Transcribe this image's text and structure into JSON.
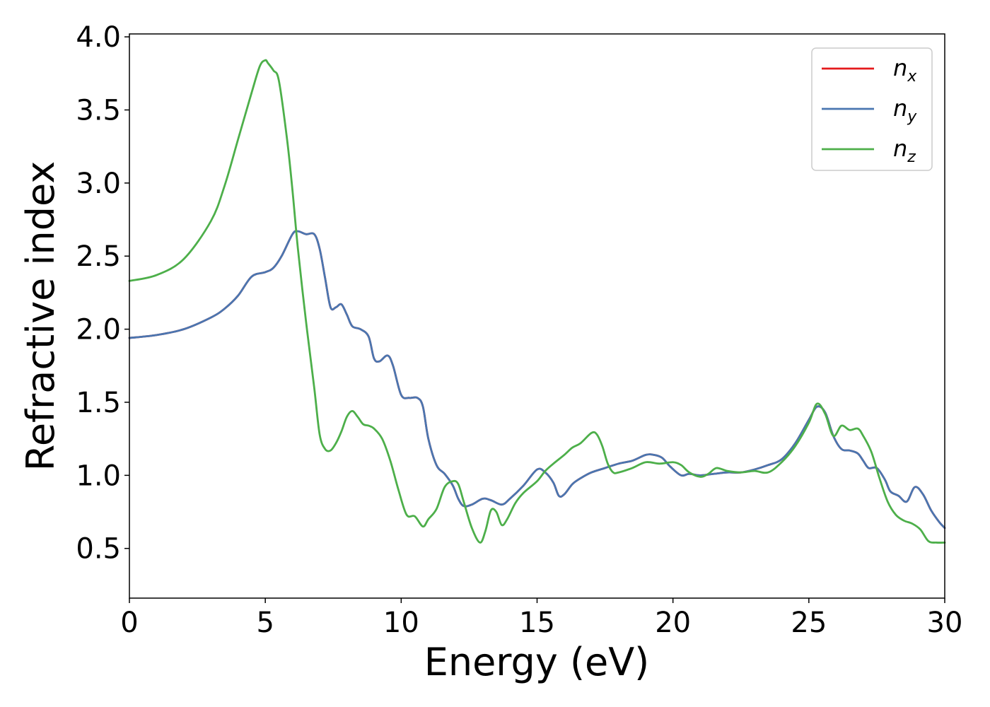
{
  "chart_data": {
    "type": "line",
    "title": "",
    "xlabel": "Energy (eV)",
    "ylabel": "Refractive index",
    "xlim": [
      0,
      30
    ],
    "ylim": [
      0.16,
      4.02
    ],
    "xticks": [
      0,
      5,
      10,
      15,
      20,
      25,
      30
    ],
    "xtick_labels": [
      "0",
      "5",
      "10",
      "15",
      "20",
      "25",
      "30"
    ],
    "yticks": [
      0.5,
      1.0,
      1.5,
      2.0,
      2.5,
      3.0,
      3.5,
      4.0
    ],
    "ytick_labels": [
      "0.5",
      "1.0",
      "1.5",
      "2.0",
      "2.5",
      "3.0",
      "3.5",
      "4.0"
    ],
    "grid": false,
    "legend_position": "top-right",
    "series": [
      {
        "name": "n_x",
        "legend_base": "n",
        "legend_sub": "x",
        "color": "#e41a1c",
        "x": [
          0,
          1,
          2,
          3,
          3.5,
          4,
          4.5,
          5,
          5.3,
          5.6,
          6.0,
          6.2,
          6.5,
          6.8,
          7.0,
          7.2,
          7.4,
          7.6,
          7.8,
          8.0,
          8.2,
          8.5,
          8.8,
          9.0,
          9.2,
          9.5,
          9.7,
          10.0,
          10.3,
          10.6,
          10.8,
          11.0,
          11.3,
          11.6,
          11.9,
          12.1,
          12.3,
          12.6,
          13.0,
          13.3,
          13.7,
          14.0,
          14.5,
          15.0,
          15.3,
          15.6,
          15.8,
          16.0,
          16.3,
          16.6,
          17.0,
          17.5,
          18.0,
          18.5,
          19.0,
          19.3,
          19.6,
          19.9,
          20.3,
          20.6,
          21.0,
          21.5,
          22.0,
          22.5,
          23.0,
          23.5,
          24.0,
          24.5,
          25.0,
          25.3,
          25.6,
          25.9,
          26.2,
          26.5,
          26.8,
          27.0,
          27.2,
          27.5,
          27.8,
          28.0,
          28.3,
          28.6,
          28.9,
          29.2,
          29.5,
          29.8,
          30.0
        ],
        "y": [
          1.94,
          1.96,
          2.0,
          2.08,
          2.14,
          2.23,
          2.36,
          2.39,
          2.42,
          2.5,
          2.65,
          2.67,
          2.65,
          2.65,
          2.55,
          2.35,
          2.15,
          2.15,
          2.17,
          2.1,
          2.02,
          2.0,
          1.95,
          1.8,
          1.78,
          1.82,
          1.75,
          1.55,
          1.53,
          1.53,
          1.47,
          1.25,
          1.07,
          1.01,
          0.93,
          0.84,
          0.79,
          0.8,
          0.84,
          0.83,
          0.8,
          0.84,
          0.93,
          1.04,
          1.02,
          0.95,
          0.86,
          0.87,
          0.94,
          0.98,
          1.02,
          1.05,
          1.08,
          1.1,
          1.14,
          1.14,
          1.12,
          1.06,
          1.0,
          1.01,
          1.0,
          1.01,
          1.02,
          1.02,
          1.04,
          1.07,
          1.11,
          1.22,
          1.38,
          1.47,
          1.43,
          1.27,
          1.18,
          1.17,
          1.15,
          1.1,
          1.05,
          1.05,
          0.97,
          0.89,
          0.86,
          0.82,
          0.92,
          0.87,
          0.76,
          0.68,
          0.64
        ]
      },
      {
        "name": "n_y",
        "legend_base": "n",
        "legend_sub": "y",
        "color": "#4a76b0",
        "x": [
          0,
          1,
          2,
          3,
          3.5,
          4,
          4.5,
          5,
          5.3,
          5.6,
          6.0,
          6.2,
          6.5,
          6.8,
          7.0,
          7.2,
          7.4,
          7.6,
          7.8,
          8.0,
          8.2,
          8.5,
          8.8,
          9.0,
          9.2,
          9.5,
          9.7,
          10.0,
          10.3,
          10.6,
          10.8,
          11.0,
          11.3,
          11.6,
          11.9,
          12.1,
          12.3,
          12.6,
          13.0,
          13.3,
          13.7,
          14.0,
          14.5,
          15.0,
          15.3,
          15.6,
          15.8,
          16.0,
          16.3,
          16.6,
          17.0,
          17.5,
          18.0,
          18.5,
          19.0,
          19.3,
          19.6,
          19.9,
          20.3,
          20.6,
          21.0,
          21.5,
          22.0,
          22.5,
          23.0,
          23.5,
          24.0,
          24.5,
          25.0,
          25.3,
          25.6,
          25.9,
          26.2,
          26.5,
          26.8,
          27.0,
          27.2,
          27.5,
          27.8,
          28.0,
          28.3,
          28.6,
          28.9,
          29.2,
          29.5,
          29.8,
          30.0
        ],
        "y": [
          1.94,
          1.96,
          2.0,
          2.08,
          2.14,
          2.23,
          2.36,
          2.39,
          2.42,
          2.5,
          2.65,
          2.67,
          2.65,
          2.65,
          2.55,
          2.35,
          2.15,
          2.15,
          2.17,
          2.1,
          2.02,
          2.0,
          1.95,
          1.8,
          1.78,
          1.82,
          1.75,
          1.55,
          1.53,
          1.53,
          1.47,
          1.25,
          1.07,
          1.01,
          0.93,
          0.84,
          0.79,
          0.8,
          0.84,
          0.83,
          0.8,
          0.84,
          0.93,
          1.04,
          1.02,
          0.95,
          0.86,
          0.87,
          0.94,
          0.98,
          1.02,
          1.05,
          1.08,
          1.1,
          1.14,
          1.14,
          1.12,
          1.06,
          1.0,
          1.01,
          1.0,
          1.01,
          1.02,
          1.02,
          1.04,
          1.07,
          1.11,
          1.22,
          1.38,
          1.47,
          1.43,
          1.27,
          1.18,
          1.17,
          1.15,
          1.1,
          1.05,
          1.05,
          0.97,
          0.89,
          0.86,
          0.82,
          0.92,
          0.87,
          0.76,
          0.68,
          0.64
        ]
      },
      {
        "name": "n_z",
        "legend_base": "n",
        "legend_sub": "z",
        "color": "#4daf4a",
        "x": [
          0,
          1,
          2,
          3,
          3.5,
          4,
          4.5,
          4.8,
          5.0,
          5.1,
          5.3,
          5.5,
          5.8,
          6.0,
          6.2,
          6.5,
          6.8,
          7.0,
          7.2,
          7.4,
          7.6,
          7.8,
          8.0,
          8.2,
          8.4,
          8.6,
          8.8,
          9.0,
          9.3,
          9.6,
          9.9,
          10.2,
          10.5,
          10.8,
          11.0,
          11.3,
          11.6,
          11.9,
          12.1,
          12.3,
          12.6,
          12.9,
          13.1,
          13.3,
          13.5,
          13.7,
          13.9,
          14.2,
          14.5,
          15.0,
          15.3,
          15.6,
          16.0,
          16.3,
          16.6,
          17.0,
          17.2,
          17.4,
          17.6,
          17.8,
          18.0,
          18.5,
          19.0,
          19.5,
          20.0,
          20.3,
          20.6,
          21.0,
          21.3,
          21.6,
          22.0,
          22.5,
          23.0,
          23.5,
          24.0,
          24.5,
          25.0,
          25.3,
          25.6,
          25.9,
          26.2,
          26.5,
          26.8,
          27.0,
          27.3,
          27.6,
          27.9,
          28.2,
          28.5,
          28.8,
          29.1,
          29.4,
          29.7,
          30.0
        ],
        "y": [
          2.33,
          2.37,
          2.48,
          2.74,
          2.98,
          3.3,
          3.62,
          3.8,
          3.84,
          3.82,
          3.77,
          3.7,
          3.3,
          2.95,
          2.55,
          2.05,
          1.6,
          1.28,
          1.18,
          1.17,
          1.22,
          1.3,
          1.4,
          1.44,
          1.4,
          1.35,
          1.34,
          1.32,
          1.25,
          1.1,
          0.9,
          0.73,
          0.72,
          0.65,
          0.7,
          0.77,
          0.92,
          0.96,
          0.94,
          0.82,
          0.64,
          0.54,
          0.62,
          0.76,
          0.75,
          0.66,
          0.7,
          0.81,
          0.88,
          0.96,
          1.03,
          1.08,
          1.14,
          1.19,
          1.22,
          1.29,
          1.28,
          1.2,
          1.08,
          1.02,
          1.02,
          1.05,
          1.09,
          1.08,
          1.09,
          1.07,
          1.02,
          0.99,
          1.01,
          1.05,
          1.03,
          1.02,
          1.03,
          1.02,
          1.09,
          1.2,
          1.36,
          1.49,
          1.42,
          1.27,
          1.34,
          1.31,
          1.32,
          1.27,
          1.16,
          0.98,
          0.82,
          0.73,
          0.69,
          0.67,
          0.63,
          0.55,
          0.54,
          0.54
        ]
      }
    ]
  }
}
